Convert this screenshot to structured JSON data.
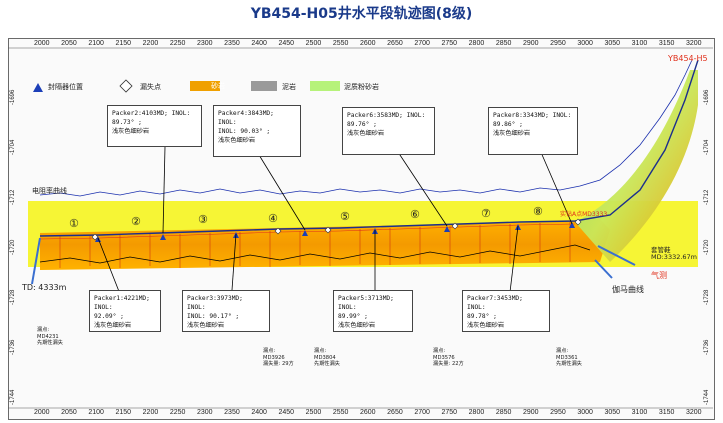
{
  "title": "YB454-H05井水平段轨迹图(8级)",
  "x_ticks_top": [
    "2000",
    "2050",
    "2100",
    "2150",
    "2200",
    "2250",
    "2300",
    "2350",
    "2400",
    "2450",
    "2500",
    "2550",
    "2600",
    "2650",
    "2700",
    "2750",
    "2800",
    "2850",
    "2900",
    "2950",
    "3000",
    "3050",
    "3100",
    "3150",
    "3200"
  ],
  "x_ticks_bottom": [
    "2000",
    "2050",
    "2100",
    "2150",
    "2200",
    "2250",
    "2300",
    "2350",
    "2400",
    "2450",
    "2500",
    "2550",
    "2600",
    "2650",
    "2700",
    "2750",
    "2800",
    "2850",
    "2900",
    "2950",
    "3000",
    "3050",
    "3100",
    "3150",
    "3200"
  ],
  "y_ticks_left": [
    "-1696",
    "-1704",
    "-1712",
    "-1720",
    "-1728",
    "-1736",
    "-1744"
  ],
  "y_ticks_right": [
    "-1696",
    "-1704",
    "-1712",
    "-1720",
    "-1728",
    "-1736",
    "-1744"
  ],
  "legend": {
    "items": [
      {
        "label": "封隔器位置",
        "color": "#1c3fb8"
      },
      {
        "label": "漏失点",
        "color": "#ffffff"
      },
      {
        "label": "砂岩",
        "color": "#f0a000"
      },
      {
        "label": "泥岩",
        "color": "#9a9a9a"
      },
      {
        "label": "泥质粉砂岩",
        "color": "#b6f27a"
      }
    ]
  },
  "well_label": "YB454-H5",
  "resistivity_label": "电阻率曲线",
  "td_label": "TD: 4333m",
  "segments": [
    "①",
    "②",
    "③",
    "④",
    "⑤",
    "⑥",
    "⑦",
    "⑧"
  ],
  "packers": [
    {
      "name": "Packer1:4221MD;   INOL:",
      "incl": "92.09°  ;",
      "lith": "浅灰色细砂岩"
    },
    {
      "name": "Packer2:4103MD;   INOL:",
      "incl": "89.73°  ;",
      "lith": "浅灰色细砂岩"
    },
    {
      "name": "Packer3:3973MD;   INOL:",
      "incl": "INOL: 90.17°  ;",
      "lith": "浅灰色细砂岩"
    },
    {
      "name": "Packer4:3843MD;   INOL:",
      "incl": "INOL: 90.03°  ;",
      "lith": "浅灰色细砂岩"
    },
    {
      "name": "Packer5:3713MD;   INOL:",
      "incl": "89.99°  ;",
      "lith": "浅灰色细砂岩"
    },
    {
      "name": "Packer6:3583MD;   INOL:",
      "incl": "89.76°  ;",
      "lith": "浅灰色细砂岩"
    },
    {
      "name": "Packer7:3453MD;   INOL:",
      "incl": "89.78°  ;",
      "lith": "浅灰色细砂岩"
    },
    {
      "name": "Packer8:3343MD;   INOL:",
      "incl": "89.86°  ;",
      "lith": "浅灰色细砂岩"
    }
  ],
  "leak_points": [
    {
      "l1": "漏点:",
      "l2": "MD4231",
      "l3": "先期性漏失"
    },
    {
      "l1": "漏点:",
      "l2": "MD3926",
      "l3": "漏失量: 29方"
    },
    {
      "l1": "漏点:",
      "l2": "MD3804",
      "l3": "先期性漏失"
    },
    {
      "l1": "漏点:",
      "l2": "MD3576",
      "l3": "漏失量: 22方"
    },
    {
      "l1": "漏点:",
      "l2": "MD3361",
      "l3": "先期性漏失"
    }
  ],
  "annotations": {
    "casing_shoe": "套管鞋",
    "casing_md": "MD:3332.67m",
    "gas_show": "气测",
    "gamma": "伽马曲线",
    "target_box": "实钻A点MD3333"
  }
}
